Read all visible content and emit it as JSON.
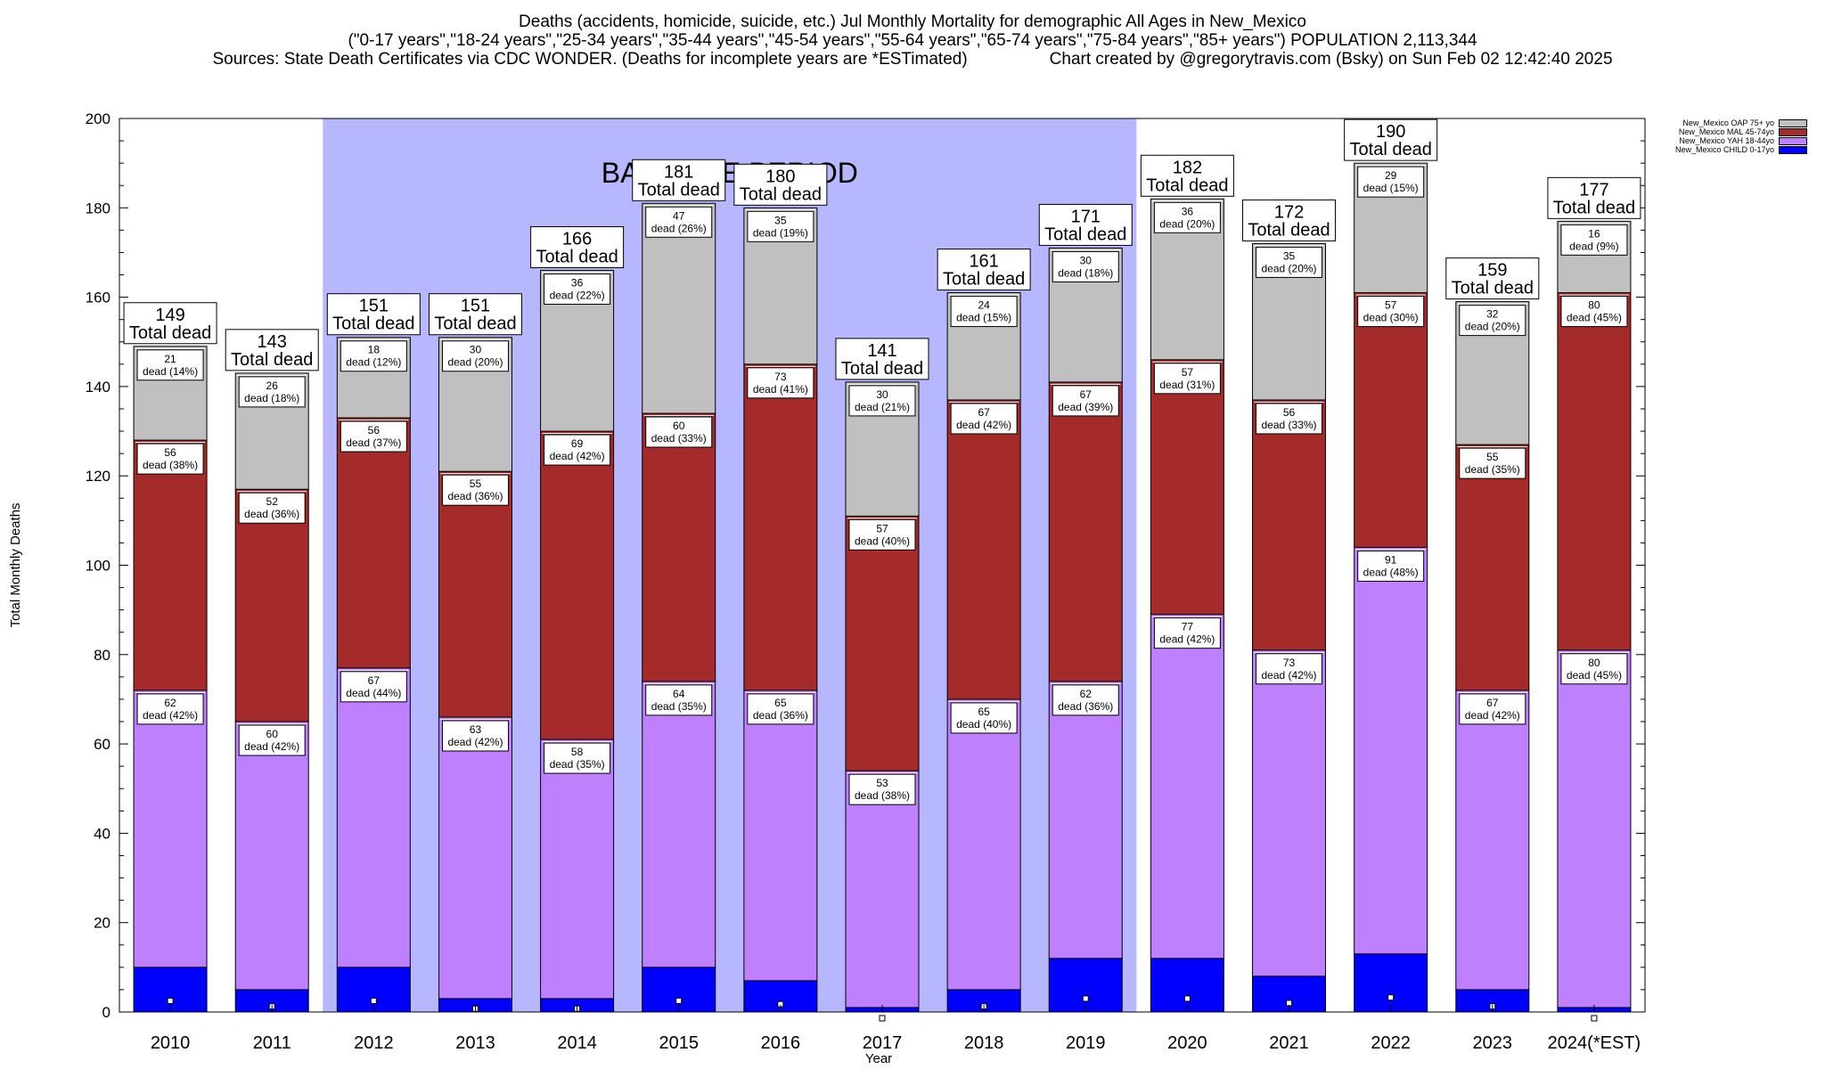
{
  "header": {
    "line1": "Deaths (accidents, homicide, suicide, etc.) Jul Monthly Mortality for demographic All Ages in New_Mexico",
    "line2": "(\"0-17 years\",\"18-24 years\",\"25-34 years\",\"35-44 years\",\"45-54 years\",\"55-64 years\",\"65-74 years\",\"75-84 years\",\"85+ years\") POPULATION 2,113,344",
    "line3_left": "Sources: State Death Certificates via CDC WONDER. (Deaths for incomplete years are *ESTimated)",
    "line3_right": "Chart created by @gregorytravis.com (Bsky) on Sun Feb 02 12:42:40 2025"
  },
  "chart_data": {
    "type": "bar",
    "stacked": true,
    "xlabel": "Year",
    "ylabel": "Total Monthly Deaths",
    "ylim": [
      0,
      200
    ],
    "yticks": [
      0,
      20,
      40,
      60,
      80,
      100,
      120,
      140,
      160,
      180,
      200
    ],
    "grid": false,
    "legend_position": "top-right, outside plot",
    "baseline": {
      "label": "BASELINE PERIOD",
      "from": "2012",
      "to": "2019"
    },
    "categories": [
      "2010",
      "2011",
      "2012",
      "2013",
      "2014",
      "2015",
      "2016",
      "2017",
      "2018",
      "2019",
      "2020",
      "2021",
      "2022",
      "2023",
      "2024(*EST)"
    ],
    "totals": [
      149,
      143,
      151,
      151,
      166,
      181,
      180,
      141,
      161,
      171,
      182,
      172,
      190,
      159,
      177
    ],
    "total_suffix": "Total dead",
    "series": [
      {
        "name": "New_Mexico CHILD 0-17yo",
        "color": "#0000ff",
        "values": [
          10,
          5,
          10,
          3,
          3,
          10,
          7,
          1,
          5,
          12,
          12,
          8,
          13,
          5,
          1
        ],
        "labeled": false
      },
      {
        "name": "New_Mexico YAH 18-44yo",
        "color": "#bf80ff",
        "values": [
          62,
          60,
          67,
          63,
          58,
          64,
          65,
          53,
          65,
          62,
          77,
          73,
          91,
          67,
          80
        ],
        "percents": [
          "42%",
          "42%",
          "44%",
          "42%",
          "35%",
          "35%",
          "36%",
          "38%",
          "40%",
          "36%",
          "42%",
          "42%",
          "48%",
          "42%",
          "45%"
        ],
        "labeled": true
      },
      {
        "name": "New_Mexico MAL 45-74yo",
        "color": "#a52a2a",
        "values": [
          56,
          52,
          56,
          55,
          69,
          60,
          73,
          57,
          67,
          67,
          57,
          56,
          57,
          55,
          80
        ],
        "percents": [
          "38%",
          "36%",
          "37%",
          "36%",
          "42%",
          "33%",
          "41%",
          "40%",
          "42%",
          "39%",
          "31%",
          "33%",
          "30%",
          "35%",
          "45%"
        ],
        "labeled": true
      },
      {
        "name": "New_Mexico OAP 75+ yo",
        "color": "#c0c0c0",
        "values": [
          21,
          26,
          18,
          30,
          36,
          47,
          35,
          30,
          24,
          30,
          36,
          35,
          29,
          32,
          16
        ],
        "percents": [
          "14%",
          "18%",
          "12%",
          "20%",
          "22%",
          "26%",
          "19%",
          "21%",
          "15%",
          "18%",
          "20%",
          "20%",
          "15%",
          "20%",
          "9%"
        ],
        "labeled": true
      }
    ],
    "dead_word": "dead"
  }
}
